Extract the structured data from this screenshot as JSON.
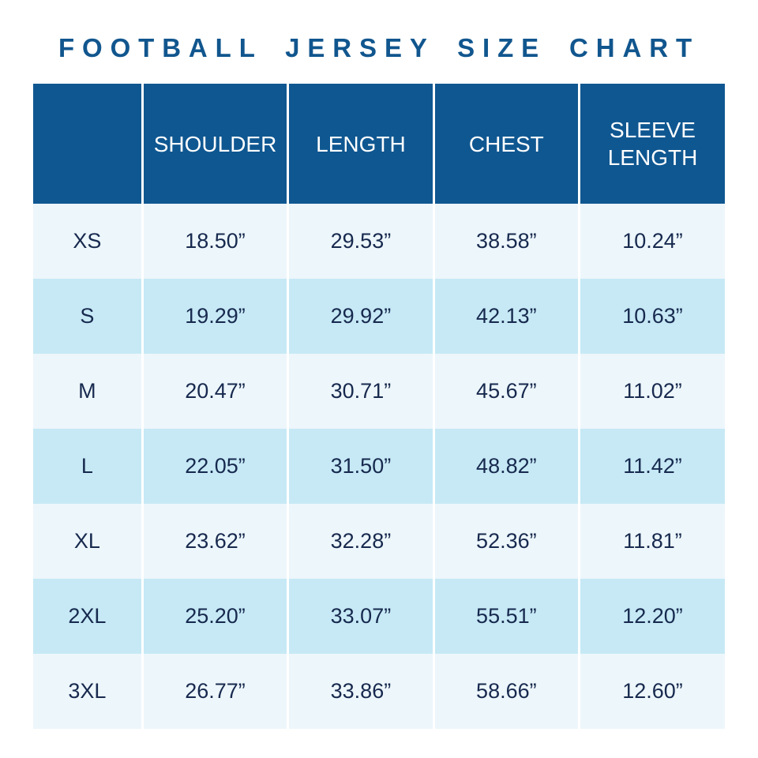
{
  "page": {
    "title": "FOOTBALL JERSEY SIZE CHART"
  },
  "colors": {
    "title_text": "#11568e",
    "header_bg": "#0f5791",
    "header_text": "#ffffff",
    "row_light": "#edf6fb",
    "row_cyan": "#c6e9f5",
    "body_text": "#17294e",
    "divider": "#ffffff"
  },
  "chart_data": {
    "type": "table",
    "title": "FOOTBALL JERSEY SIZE CHART",
    "columns": [
      "",
      "SHOULDER",
      "LENGTH",
      "CHEST",
      "SLEEVE LENGTH"
    ],
    "rows": [
      [
        "XS",
        "18.50”",
        "29.53”",
        "38.58”",
        "10.24”"
      ],
      [
        "S",
        "19.29”",
        "29.92”",
        "42.13”",
        "10.63”"
      ],
      [
        "M",
        "20.47”",
        "30.71”",
        "45.67”",
        "11.02”"
      ],
      [
        "L",
        "22.05”",
        "31.50”",
        "48.82”",
        "11.42”"
      ],
      [
        "XL",
        "23.62”",
        "32.28”",
        "52.36”",
        "11.81”"
      ],
      [
        "2XL",
        "25.20”",
        "33.07”",
        "55.51”",
        "12.20”"
      ],
      [
        "3XL",
        "26.77”",
        "33.86”",
        "58.66”",
        "12.60”"
      ]
    ]
  }
}
